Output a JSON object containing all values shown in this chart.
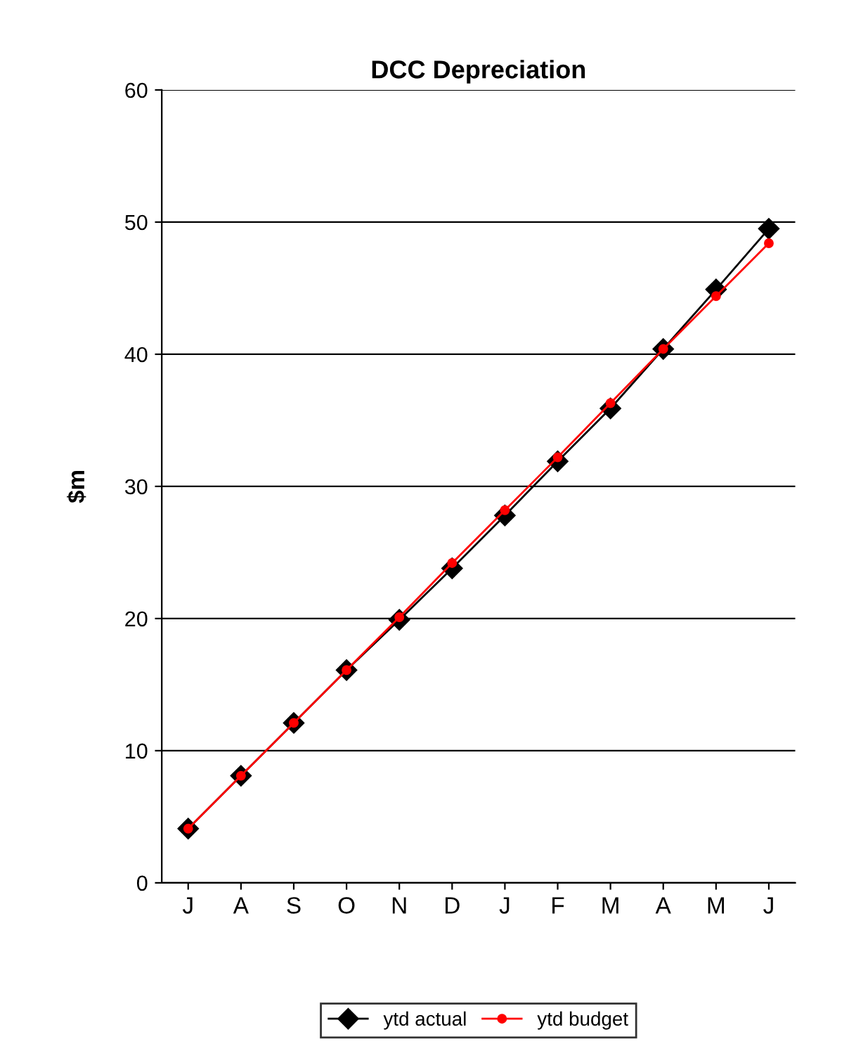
{
  "chart_data": {
    "type": "line",
    "title": "DCC Depreciation",
    "ylabel": "$m",
    "categories": [
      "J",
      "A",
      "S",
      "O",
      "N",
      "D",
      "J",
      "F",
      "M",
      "A",
      "M",
      "J"
    ],
    "series": [
      {
        "name": "ytd actual",
        "color": "#000000",
        "marker": "diamond",
        "values": [
          4.1,
          8.1,
          12.1,
          16.1,
          19.9,
          23.8,
          27.8,
          31.9,
          35.9,
          40.4,
          44.9,
          49.5
        ]
      },
      {
        "name": "ytd budget",
        "color": "#ff0000",
        "marker": "circle",
        "values": [
          4.1,
          8.1,
          12.1,
          16.1,
          20.1,
          24.2,
          28.2,
          32.2,
          36.3,
          40.4,
          44.4,
          48.4
        ]
      }
    ],
    "ylim": [
      0,
      60
    ],
    "yticks": [
      0,
      10,
      20,
      30,
      40,
      50,
      60
    ],
    "grid": "y",
    "legend": "bottom",
    "line_style": "solid"
  }
}
